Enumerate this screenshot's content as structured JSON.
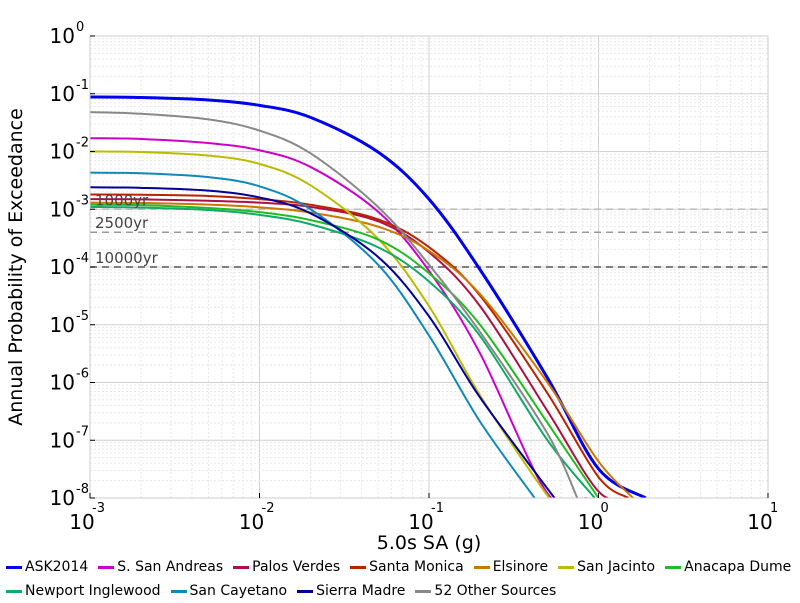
{
  "chart_data": {
    "type": "line",
    "xlabel": "5.0s SA (g)",
    "ylabel": "Annual Probability of Exceedance",
    "xscale": "log",
    "yscale": "log",
    "xlim": [
      0.001,
      10
    ],
    "ylim": [
      1e-08,
      1
    ],
    "grid": true,
    "legend_position": "bottom",
    "x_ticks": [
      {
        "base": "10",
        "exp": "-3"
      },
      {
        "base": "10",
        "exp": "-2"
      },
      {
        "base": "10",
        "exp": "-1"
      },
      {
        "base": "10",
        "exp": "0"
      },
      {
        "base": "10",
        "exp": "1"
      }
    ],
    "y_ticks": [
      {
        "base": "10",
        "exp": "0"
      },
      {
        "base": "10",
        "exp": "-1"
      },
      {
        "base": "10",
        "exp": "-2"
      },
      {
        "base": "10",
        "exp": "-3"
      },
      {
        "base": "10",
        "exp": "-4"
      },
      {
        "base": "10",
        "exp": "-5"
      },
      {
        "base": "10",
        "exp": "-6"
      },
      {
        "base": "10",
        "exp": "-7"
      },
      {
        "base": "10",
        "exp": "-8"
      }
    ],
    "reference_lines": [
      {
        "label": "1000yr",
        "y": 0.001,
        "color": "#bbbbbb"
      },
      {
        "label": "2500yr",
        "y": 0.0004,
        "color": "#999999"
      },
      {
        "label": "10000yr",
        "y": 0.0001,
        "color": "#555555"
      }
    ],
    "series": [
      {
        "name": "ASK2014",
        "color": "#0000ee",
        "points": [
          [
            0.001,
            0.088
          ],
          [
            0.002,
            0.086
          ],
          [
            0.005,
            0.078
          ],
          [
            0.01,
            0.063
          ],
          [
            0.02,
            0.039
          ],
          [
            0.05,
            0.0098
          ],
          [
            0.1,
            0.0015
          ],
          [
            0.2,
            9e-05
          ],
          [
            0.5,
            1.2e-06
          ],
          [
            1.0,
            3.2e-08
          ],
          [
            1.9,
            1e-08
          ]
        ]
      },
      {
        "name": "S. San Andreas",
        "color": "#cc00cc",
        "points": [
          [
            0.001,
            0.017
          ],
          [
            0.002,
            0.0165
          ],
          [
            0.005,
            0.014
          ],
          [
            0.01,
            0.0105
          ],
          [
            0.02,
            0.0054
          ],
          [
            0.05,
            0.00091
          ],
          [
            0.1,
            8.6e-05
          ],
          [
            0.2,
            3.2e-06
          ],
          [
            0.5,
            1.2e-08
          ],
          [
            0.85,
            1e-08
          ]
        ]
      },
      {
        "name": "Palos Verdes",
        "color": "#aa1144",
        "points": [
          [
            0.001,
            0.0015
          ],
          [
            0.002,
            0.00148
          ],
          [
            0.005,
            0.0014
          ],
          [
            0.01,
            0.0013
          ],
          [
            0.02,
            0.0011
          ],
          [
            0.05,
            0.00062
          ],
          [
            0.1,
            0.00018
          ],
          [
            0.2,
            2.1e-05
          ],
          [
            0.5,
            3.2e-07
          ],
          [
            1.0,
            1.3e-08
          ],
          [
            1.5,
            1e-08
          ]
        ]
      },
      {
        "name": "Santa Monica",
        "color": "#bb2200",
        "points": [
          [
            0.001,
            0.0018
          ],
          [
            0.002,
            0.00178
          ],
          [
            0.005,
            0.0017
          ],
          [
            0.01,
            0.0015
          ],
          [
            0.02,
            0.0012
          ],
          [
            0.05,
            0.00067
          ],
          [
            0.1,
            0.00022
          ],
          [
            0.2,
            3.2e-05
          ],
          [
            0.5,
            6.5e-07
          ],
          [
            1.0,
            2.3e-08
          ],
          [
            1.5,
            1e-08
          ]
        ]
      },
      {
        "name": "Elsinore",
        "color": "#cc7700",
        "points": [
          [
            0.001,
            0.0013
          ],
          [
            0.002,
            0.00128
          ],
          [
            0.005,
            0.0012
          ],
          [
            0.01,
            0.00108
          ],
          [
            0.02,
            0.00088
          ],
          [
            0.05,
            0.0005
          ],
          [
            0.1,
            0.00019
          ],
          [
            0.2,
            3.4e-05
          ],
          [
            0.5,
            1e-06
          ],
          [
            1.0,
            4.3e-08
          ],
          [
            1.6,
            1e-08
          ]
        ]
      },
      {
        "name": "San Jacinto",
        "color": "#bbbb00",
        "points": [
          [
            0.001,
            0.01
          ],
          [
            0.002,
            0.0098
          ],
          [
            0.005,
            0.0085
          ],
          [
            0.01,
            0.0061
          ],
          [
            0.02,
            0.0026
          ],
          [
            0.05,
            0.00031
          ],
          [
            0.1,
            2.1e-05
          ],
          [
            0.2,
            6e-07
          ],
          [
            0.5,
            1.1e-08
          ],
          [
            0.55,
            1e-08
          ]
        ]
      },
      {
        "name": "Anacapa Dume",
        "color": "#22bb22",
        "points": [
          [
            0.001,
            0.0012
          ],
          [
            0.002,
            0.00118
          ],
          [
            0.005,
            0.00105
          ],
          [
            0.01,
            0.00089
          ],
          [
            0.02,
            0.00065
          ],
          [
            0.05,
            0.0003
          ],
          [
            0.1,
            7.8e-05
          ],
          [
            0.2,
            1e-05
          ],
          [
            0.5,
            2e-07
          ],
          [
            1.0,
            1e-08
          ]
        ]
      },
      {
        "name": "Newport Inglewood",
        "color": "#11aa66",
        "points": [
          [
            0.001,
            0.0011
          ],
          [
            0.002,
            0.00107
          ],
          [
            0.005,
            0.00097
          ],
          [
            0.01,
            0.0008
          ],
          [
            0.02,
            0.00055
          ],
          [
            0.05,
            0.00022
          ],
          [
            0.1,
            5.6e-05
          ],
          [
            0.2,
            6.4e-06
          ],
          [
            0.5,
            1e-07
          ],
          [
            0.95,
            1e-08
          ]
        ]
      },
      {
        "name": "San Cayetano",
        "color": "#1188bb",
        "points": [
          [
            0.001,
            0.0043
          ],
          [
            0.002,
            0.0042
          ],
          [
            0.005,
            0.0036
          ],
          [
            0.01,
            0.0025
          ],
          [
            0.02,
            0.001
          ],
          [
            0.05,
            0.00011
          ],
          [
            0.1,
            6.5e-06
          ],
          [
            0.2,
            2.1e-07
          ],
          [
            0.42,
            1e-08
          ]
        ]
      },
      {
        "name": "Sierra Madre",
        "color": "#000099",
        "points": [
          [
            0.001,
            0.0024
          ],
          [
            0.002,
            0.00235
          ],
          [
            0.005,
            0.0021
          ],
          [
            0.01,
            0.0016
          ],
          [
            0.02,
            0.00085
          ],
          [
            0.05,
            0.00015
          ],
          [
            0.1,
            1.4e-05
          ],
          [
            0.2,
            5.5e-07
          ],
          [
            0.55,
            1e-08
          ]
        ]
      },
      {
        "name": "52 Other Sources",
        "color": "#888888",
        "points": [
          [
            0.001,
            0.048
          ],
          [
            0.002,
            0.045
          ],
          [
            0.005,
            0.036
          ],
          [
            0.01,
            0.023
          ],
          [
            0.02,
            0.0093
          ],
          [
            0.05,
            0.0011
          ],
          [
            0.1,
            0.00011
          ],
          [
            0.2,
            7.5e-06
          ],
          [
            0.5,
            1.3e-07
          ],
          [
            0.75,
            1e-08
          ]
        ]
      }
    ]
  }
}
